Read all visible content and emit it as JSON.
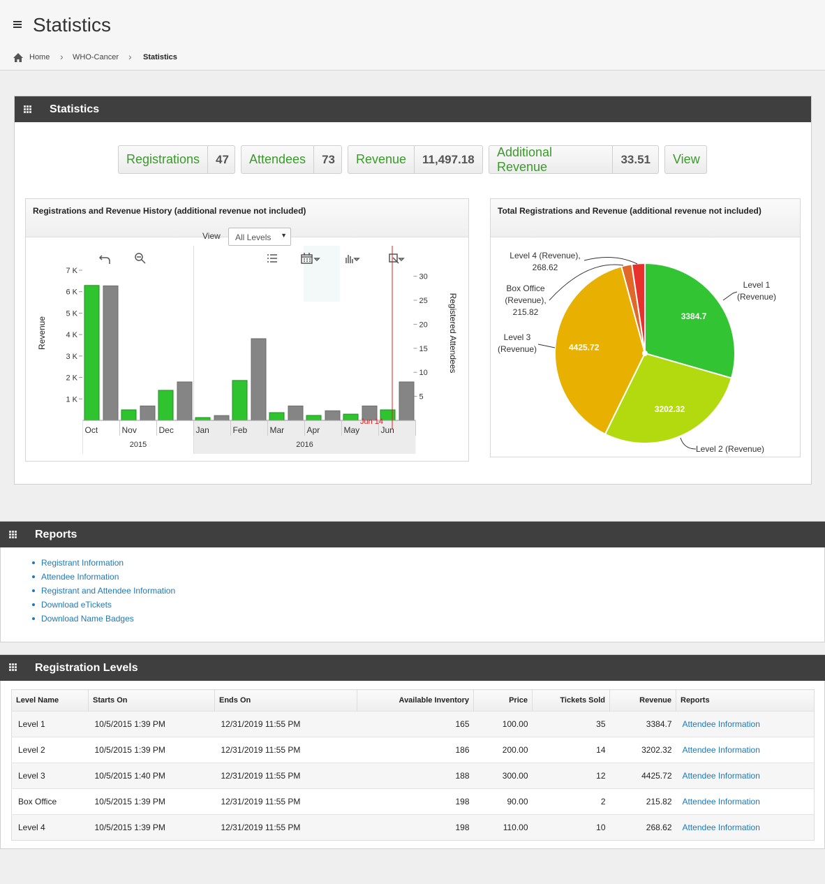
{
  "header": {
    "title": "Statistics",
    "breadcrumb": [
      "Home",
      "WHO-Cancer",
      "Statistics"
    ]
  },
  "statistics_panel": {
    "title": "Statistics",
    "summary": [
      {
        "label": "Registrations",
        "value": "47"
      },
      {
        "label": "Attendees",
        "value": "73"
      },
      {
        "label": "Revenue",
        "value": "11,497.18"
      },
      {
        "label": "Additional Revenue",
        "value": "33.51"
      }
    ],
    "view_button": "View"
  },
  "chart_data": [
    {
      "type": "bar",
      "title": "Registrations and Revenue History (additional revenue not included)",
      "view_label": "View",
      "view_select": "All Levels",
      "categories": [
        "Oct",
        "Nov",
        "Dec",
        "Jan",
        "Feb",
        "Mar",
        "Apr",
        "May",
        "Jun"
      ],
      "category_groups": [
        "2015",
        "2016"
      ],
      "series": [
        {
          "color": "#2fc42f",
          "values": [
            6290,
            490,
            1400,
            130,
            1860,
            360,
            230,
            290,
            490
          ]
        },
        {
          "color": "#858585",
          "axis": "y2",
          "values": [
            28,
            3,
            8,
            1,
            17,
            3,
            2,
            3,
            8
          ]
        }
      ],
      "ylabel": "Revenue",
      "y2label": "Registered Attendees",
      "ylim": [
        0,
        7000
      ],
      "yticks": [
        {
          "value": 1000,
          "label": "1 K"
        },
        {
          "value": 2000,
          "label": "2 K"
        },
        {
          "value": 3000,
          "label": "3 K"
        },
        {
          "value": 4000,
          "label": "4 K"
        },
        {
          "value": 5000,
          "label": "5 K"
        },
        {
          "value": 6000,
          "label": "6 K"
        },
        {
          "value": 7000,
          "label": "7 K"
        }
      ],
      "y2lim": [
        0,
        31.25
      ],
      "y2ticks": [
        5,
        10,
        15,
        20,
        25,
        30
      ],
      "annotation": "Jun 14",
      "annotation_color": "#d92020"
    },
    {
      "type": "pie",
      "title": "Total Registrations and Revenue (additional revenue not included)",
      "labels": [
        "Level 1 (Revenue)",
        "Level 2 (Revenue)",
        "Level 3 (Revenue)",
        "Box Office (Revenue), 215.82",
        "Level 4 (Revenue), 268.62"
      ],
      "values": [
        3384.7,
        3202.32,
        4425.72,
        215.82,
        268.62
      ],
      "colors": [
        "#33c433",
        "#b3d90f",
        "#e8b000",
        "#e0692a",
        "#e8302c"
      ]
    }
  ],
  "reports": {
    "title": "Reports",
    "links": [
      "Registrant Information",
      "Attendee Information",
      "Registrant and Attendee Information",
      "Download eTickets",
      "Download Name Badges"
    ]
  },
  "levels": {
    "title": "Registration Levels",
    "columns": [
      "Level Name",
      "Starts On",
      "Ends On",
      "Available Inventory",
      "Price",
      "Tickets Sold",
      "Revenue",
      "Reports"
    ],
    "rows": [
      [
        "Level 1",
        "10/5/2015 1:39 PM",
        "12/31/2019 11:55 PM",
        "165",
        "100.00",
        "35",
        "3384.7",
        "Attendee Information"
      ],
      [
        "Level 2",
        "10/5/2015 1:39 PM",
        "12/31/2019 11:55 PM",
        "186",
        "200.00",
        "14",
        "3202.32",
        "Attendee Information"
      ],
      [
        "Level 3",
        "10/5/2015 1:40 PM",
        "12/31/2019 11:55 PM",
        "188",
        "300.00",
        "12",
        "4425.72",
        "Attendee Information"
      ],
      [
        "Box Office",
        "10/5/2015 1:39 PM",
        "12/31/2019 11:55 PM",
        "198",
        "90.00",
        "2",
        "215.82",
        "Attendee Information"
      ],
      [
        "Level 4",
        "10/5/2015 1:39 PM",
        "12/31/2019 11:55 PM",
        "198",
        "110.00",
        "10",
        "268.62",
        "Attendee Information"
      ]
    ]
  }
}
